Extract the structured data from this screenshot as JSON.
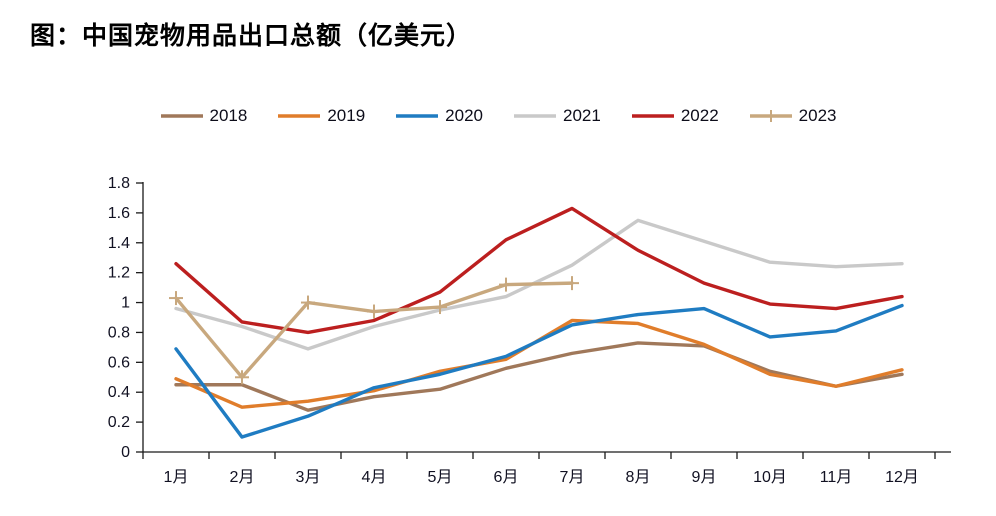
{
  "title": "图：中国宠物用品出口总额（亿美元）",
  "chart_data": {
    "type": "line",
    "title": "图：中国宠物用品出口总额（亿美元）",
    "unit": "亿美元",
    "categories": [
      "1月",
      "2月",
      "3月",
      "4月",
      "5月",
      "6月",
      "7月",
      "8月",
      "9月",
      "10月",
      "11月",
      "12月"
    ],
    "ylim": [
      0,
      1.8
    ],
    "ytick_labels": [
      "0",
      "0.2",
      "0.4",
      "0.6",
      "0.8",
      "1",
      "1.2",
      "1.4",
      "1.6",
      "1.8"
    ],
    "grid": false,
    "legend_position": "top",
    "axis_color": "#1a1a1a",
    "tick_label_color": "#111122",
    "series": [
      {
        "name": "2018",
        "color": "#A0785A",
        "marker": "none",
        "values": [
          0.45,
          0.45,
          0.28,
          0.37,
          0.42,
          0.56,
          0.66,
          0.73,
          0.71,
          0.54,
          0.44,
          0.52
        ]
      },
      {
        "name": "2019",
        "color": "#E07D2B",
        "marker": "none",
        "values": [
          0.49,
          0.3,
          0.34,
          0.41,
          0.54,
          0.62,
          0.88,
          0.86,
          0.72,
          0.52,
          0.44,
          0.55
        ]
      },
      {
        "name": "2020",
        "color": "#1F7CC2",
        "marker": "none",
        "values": [
          0.69,
          0.1,
          0.24,
          0.43,
          0.52,
          0.64,
          0.85,
          0.92,
          0.96,
          0.77,
          0.81,
          0.98
        ]
      },
      {
        "name": "2021",
        "color": "#C9C9C9",
        "marker": "none",
        "values": [
          0.96,
          0.84,
          0.69,
          0.84,
          0.95,
          1.04,
          1.25,
          1.55,
          1.41,
          1.27,
          1.24,
          1.26
        ]
      },
      {
        "name": "2022",
        "color": "#BC1F1F",
        "marker": "none",
        "values": [
          1.26,
          0.87,
          0.8,
          0.88,
          1.07,
          1.42,
          1.63,
          1.35,
          1.13,
          0.99,
          0.96,
          1.04
        ]
      },
      {
        "name": "2023",
        "color": "#C8A87E",
        "marker": "plus",
        "values": [
          1.03,
          0.5,
          1.0,
          0.94,
          0.97,
          1.12,
          1.13,
          null,
          null,
          null,
          null,
          null
        ]
      }
    ]
  }
}
